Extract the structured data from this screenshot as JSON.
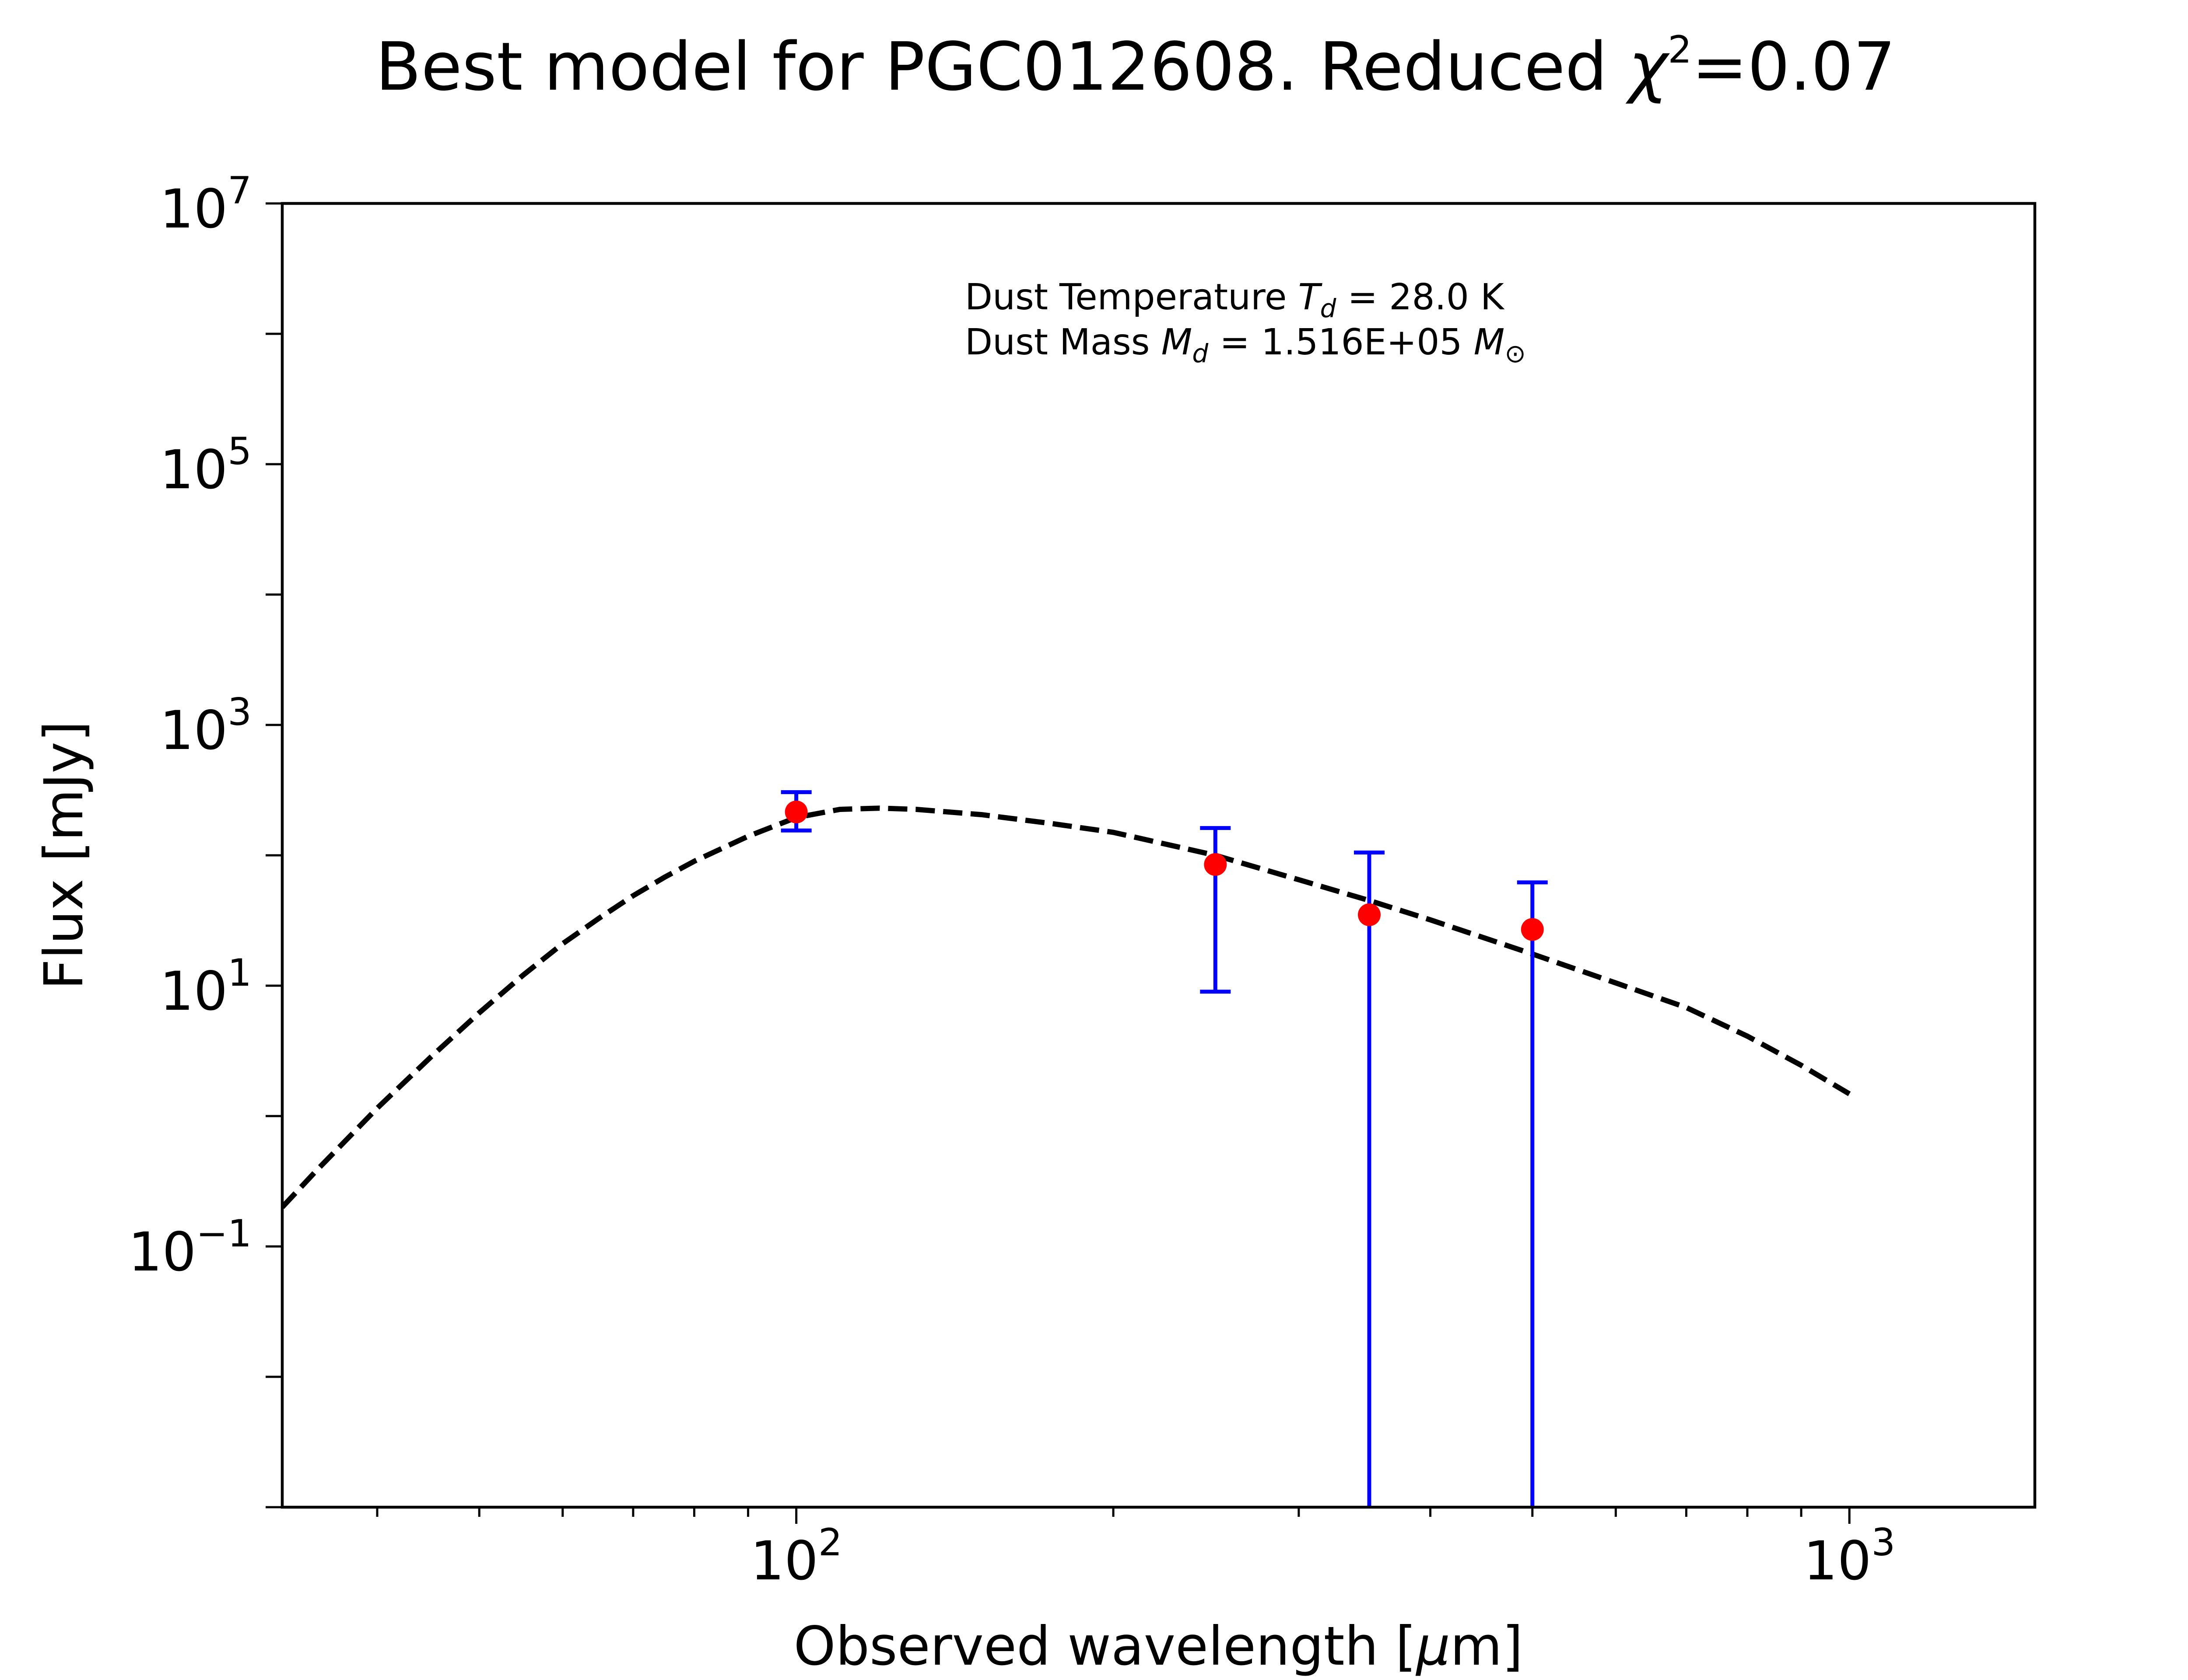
{
  "chart_data": {
    "type": "scatter",
    "title": {
      "prefix": "Best model for PGC012608. Reduced ",
      "chi": "χ",
      "chi_exp": "2",
      "suffix": "=0.07"
    },
    "xlabel": {
      "prefix": "Observed wavelength [",
      "mu": "μ",
      "suffix": "m]"
    },
    "ylabel": "Flux [mJy]",
    "x_scale": "log",
    "y_scale": "log",
    "xlim": [
      32.5,
      1500
    ],
    "ylim": [
      0.001,
      10000000
    ],
    "grid": false,
    "x_ticks": [
      {
        "value": 100,
        "base": "10",
        "exp": "2"
      },
      {
        "value": 1000,
        "base": "10",
        "exp": "3"
      }
    ],
    "y_ticks": [
      {
        "value": 10000000,
        "base": "10",
        "exp": "7"
      },
      {
        "value": 100000,
        "base": "10",
        "exp": "5"
      },
      {
        "value": 1000,
        "base": "10",
        "exp": "3"
      },
      {
        "value": 10,
        "base": "10",
        "exp": "1"
      },
      {
        "value": 0.1,
        "base": "10",
        "exp": "−1"
      }
    ],
    "annotation": {
      "line1": {
        "prefix": "Dust Temperature ",
        "sym": "T",
        "sub": "d",
        "suffix": " = 28.0 K"
      },
      "line2": {
        "prefix": "Dust Mass ",
        "sym": "M",
        "sub": "d",
        "middle": " = 1.516E+05 ",
        "sym2": "M",
        "sub2": "⊙"
      }
    },
    "series": [
      {
        "kind": "model",
        "style": "dashed",
        "color": "#000000",
        "x": [
          32.5,
          35,
          40,
          45,
          50,
          55,
          60,
          65,
          70,
          75,
          80,
          90,
          100,
          110,
          120,
          130,
          150,
          175,
          200,
          250,
          300,
          350,
          400,
          500,
          600,
          700,
          800,
          900,
          1000
        ],
        "y": [
          0.2,
          0.38,
          1.15,
          2.85,
          6.2,
          12,
          21,
          33,
          49,
          68,
          90,
          140,
          195,
          225,
          230,
          225,
          205,
          175,
          150,
          100,
          65,
          45,
          32,
          17.5,
          10.5,
          6.8,
          4.1,
          2.45,
          1.48
        ]
      },
      {
        "kind": "observed",
        "marker_color": "#ff0000",
        "errorbar_color": "#0000ff",
        "points": [
          {
            "x": 100,
            "y": 215,
            "ylo": 155,
            "yhi": 305
          },
          {
            "x": 250,
            "y": 85,
            "ylo": 9,
            "yhi": 162
          },
          {
            "x": 350,
            "y": 35,
            "ylo": 0.001,
            "yhi": 105
          },
          {
            "x": 500,
            "y": 27,
            "ylo": 0.001,
            "yhi": 62
          }
        ]
      }
    ]
  }
}
